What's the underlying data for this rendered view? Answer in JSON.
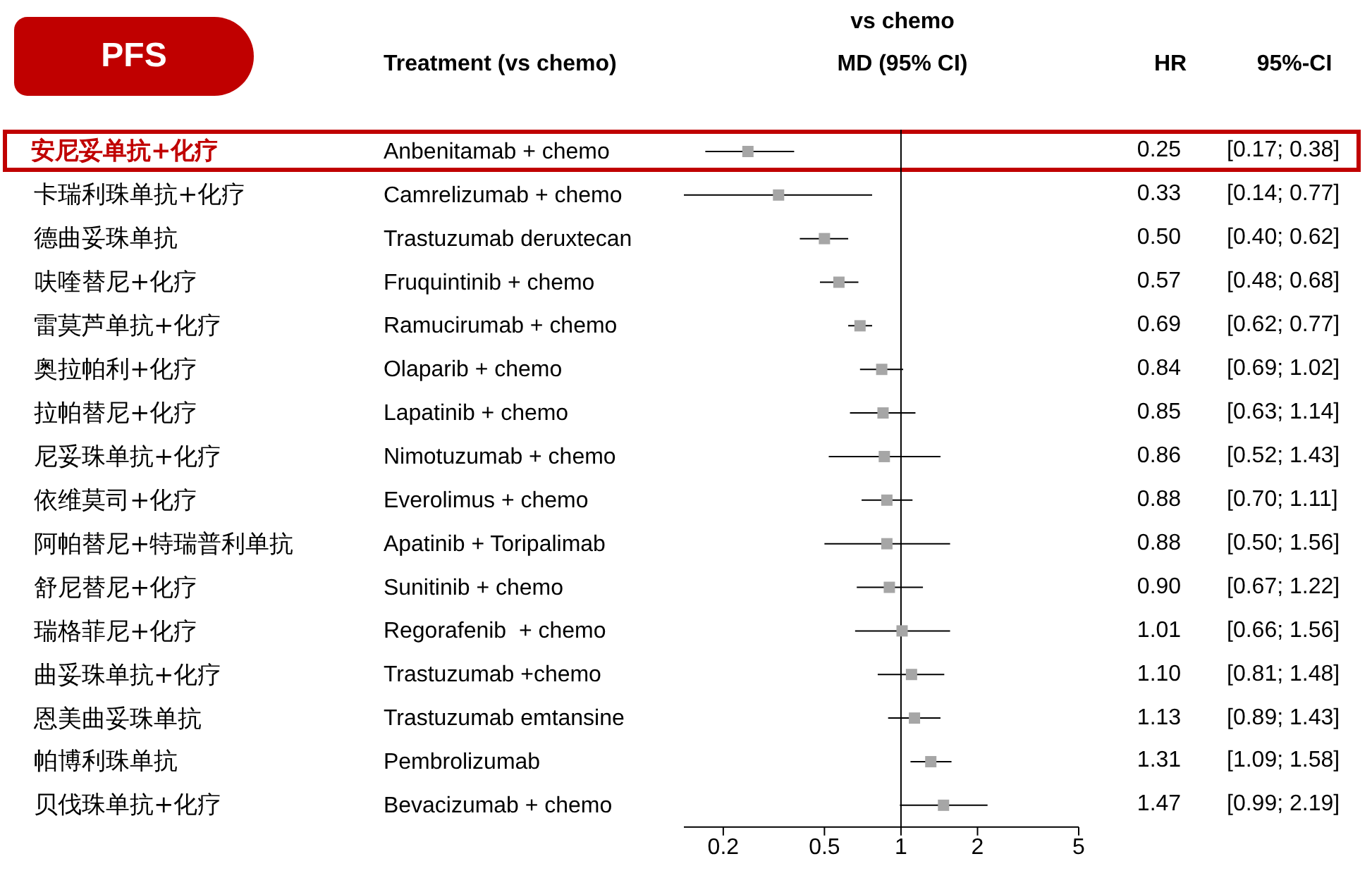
{
  "chart_data": {
    "type": "scatter",
    "title": "PFS",
    "subtitle": "vs chemo",
    "xlabel": "MD (95% CI)",
    "ylabel": "Treatment (vs chemo)",
    "categories": [
      "Anbenitamab + chemo",
      "Camrelizumab + chemo",
      "Trastuzumab deruxtecan",
      "Fruquintinib + chemo",
      "Ramucirumab + chemo",
      "Olaparib + chemo",
      "Lapatinib + chemo",
      "Nimotuzumab + chemo",
      "Everolimus + chemo",
      "Apatinib + Toripalimab",
      "Sunitinib + chemo",
      "Regorafenib  + chemo",
      "Trastuzumab +chemo",
      "Trastuzumab emtansine",
      "Pembrolizumab",
      "Bevacizumab + chemo"
    ],
    "y2_categories": [
      "安尼妥单抗+化疗",
      "卡瑞利珠单抗+化疗",
      "德曲妥珠单抗",
      "呋喹替尼+化疗",
      "雷莫芦单抗+化疗",
      "奥拉帕利+化疗",
      "拉帕替尼+化疗",
      "尼妥珠单抗+化疗",
      "依维莫司+化疗",
      "阿帕替尼+特瑞普利单抗",
      "舒尼替尼+化疗",
      "瑞格菲尼+化疗",
      "曲妥珠单抗+化疗",
      "恩美曲妥珠单抗",
      "帕博利珠单抗",
      "贝伐珠单抗+化疗"
    ],
    "series": [
      {
        "color": "#a6a6a6",
        "values": [
          0.25,
          0.33,
          0.5,
          0.57,
          0.69,
          0.84,
          0.85,
          0.86,
          0.88,
          0.88,
          0.9,
          1.01,
          1.1,
          1.13,
          1.31,
          1.47
        ],
        "errors": [
          [
            0.17,
            0.38
          ],
          [
            0.14,
            0.77
          ],
          [
            0.4,
            0.62
          ],
          [
            0.48,
            0.68
          ],
          [
            0.62,
            0.77
          ],
          [
            0.69,
            1.02
          ],
          [
            0.63,
            1.14
          ],
          [
            0.52,
            1.43
          ],
          [
            0.7,
            1.11
          ],
          [
            0.5,
            1.56
          ],
          [
            0.67,
            1.22
          ],
          [
            0.66,
            1.56
          ],
          [
            0.81,
            1.48
          ],
          [
            0.89,
            1.43
          ],
          [
            1.09,
            1.58
          ],
          [
            0.99,
            2.19
          ]
        ],
        "value_labels": [
          "0.25",
          "0.33",
          "0.50",
          "0.57",
          "0.69",
          "0.84",
          "0.85",
          "0.86",
          "0.88",
          "0.88",
          "0.90",
          "1.01",
          "1.10",
          "1.13",
          "1.31",
          "1.47"
        ]
      }
    ],
    "annotations": [
      "HR",
      "95%-CI",
      "[0.17; 0.38]",
      "[0.14; 0.77]",
      "[0.40; 0.62]",
      "[0.48; 0.68]",
      "[0.62; 0.77]",
      "[0.69; 1.02]",
      "[0.63; 1.14]",
      "[0.52; 1.43]",
      "[0.70; 1.11]",
      "[0.50; 1.56]",
      "[0.67; 1.22]",
      "[0.66; 1.56]",
      "[0.81; 1.48]",
      "[0.89; 1.43]",
      "[1.09; 1.58]",
      "[0.99; 2.19]"
    ],
    "orientation": "horizontal",
    "log": "x",
    "xlim": [
      0.14,
      5
    ],
    "xticks": [
      0.2,
      0.5,
      1,
      2,
      5
    ],
    "marker": "square",
    "grid": false,
    "legend": false,
    "ref_lines": [
      {
        "axis": "x",
        "value": 1,
        "color": "#000000"
      }
    ]
  }
}
